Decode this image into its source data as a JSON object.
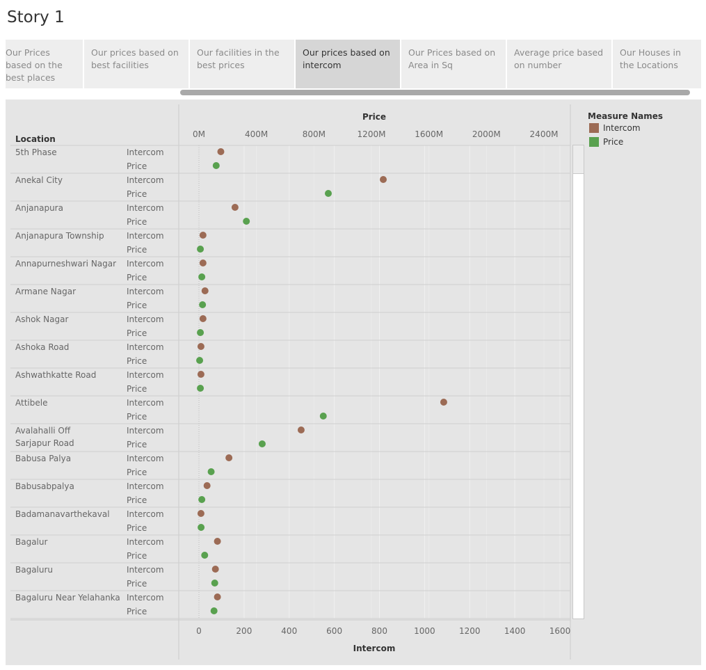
{
  "story": {
    "title": "Story 1"
  },
  "tabs": [
    {
      "label": "Our Prices based on the best places",
      "active": false
    },
    {
      "label": "Our prices based on best facilities",
      "active": false
    },
    {
      "label": "Our facilities in the best prices",
      "active": false
    },
    {
      "label": "Our prices based on intercom",
      "active": true
    },
    {
      "label": "Our Prices based on Area in Sq",
      "active": false
    },
    {
      "label": "Average price based on number",
      "active": false
    },
    {
      "label": "Our Houses in the Locations",
      "active": false
    }
  ],
  "legend": {
    "title": "Measure Names",
    "items": [
      {
        "label": "Intercom",
        "color": "#9c6b55"
      },
      {
        "label": "Price",
        "color": "#59a14f"
      }
    ]
  },
  "chart_data": {
    "type": "scatter",
    "row_header": "Location",
    "measures": [
      "Intercom",
      "Price"
    ],
    "top_axis": {
      "title": "Price",
      "ticks": [
        0,
        400,
        800,
        1200,
        1600,
        2000,
        2400
      ],
      "tick_labels": [
        "0M",
        "400M",
        "800M",
        "1200M",
        "1600M",
        "2000M",
        "2400M"
      ],
      "unit": "M"
    },
    "bottom_axis": {
      "title": "Intercom",
      "ticks": [
        0,
        200,
        400,
        600,
        800,
        1000,
        1200,
        1400,
        1600
      ],
      "tick_labels": [
        "0",
        "200",
        "400",
        "600",
        "800",
        "1000",
        "1200",
        "1400",
        "1600"
      ]
    },
    "rows": [
      {
        "location": "5th Phase",
        "intercom": 97,
        "price_m": 120
      },
      {
        "location": "Anekal City",
        "intercom": 817,
        "price_m": 900
      },
      {
        "location": "Anjanapura",
        "intercom": 160,
        "price_m": 330
      },
      {
        "location": "Anjanapura Township",
        "intercom": 18,
        "price_m": 10
      },
      {
        "location": "Annapurneshwari Nagar",
        "intercom": 18,
        "price_m": 20
      },
      {
        "location": "Armane Nagar",
        "intercom": 27,
        "price_m": 25
      },
      {
        "location": "Ashok Nagar",
        "intercom": 18,
        "price_m": 10
      },
      {
        "location": "Ashoka Road",
        "intercom": 9,
        "price_m": 5
      },
      {
        "location": "Ashwathkatte Road",
        "intercom": 9,
        "price_m": 10
      },
      {
        "location": "Attibele",
        "intercom": 1085,
        "price_m": 865
      },
      {
        "location": "Avalahalli Off Sarjapur Road",
        "intercom": 453,
        "price_m": 440
      },
      {
        "location": "Babusa Palya",
        "intercom": 133,
        "price_m": 85
      },
      {
        "location": "Babusabpalya",
        "intercom": 36,
        "price_m": 20
      },
      {
        "location": "Badamanavarthekaval",
        "intercom": 9,
        "price_m": 15
      },
      {
        "location": "Bagalur",
        "intercom": 82,
        "price_m": 40
      },
      {
        "location": "Bagaluru",
        "intercom": 73,
        "price_m": 110
      },
      {
        "location": "Bagaluru Near Yelahanka",
        "intercom": 82,
        "price_m": 105
      }
    ]
  }
}
